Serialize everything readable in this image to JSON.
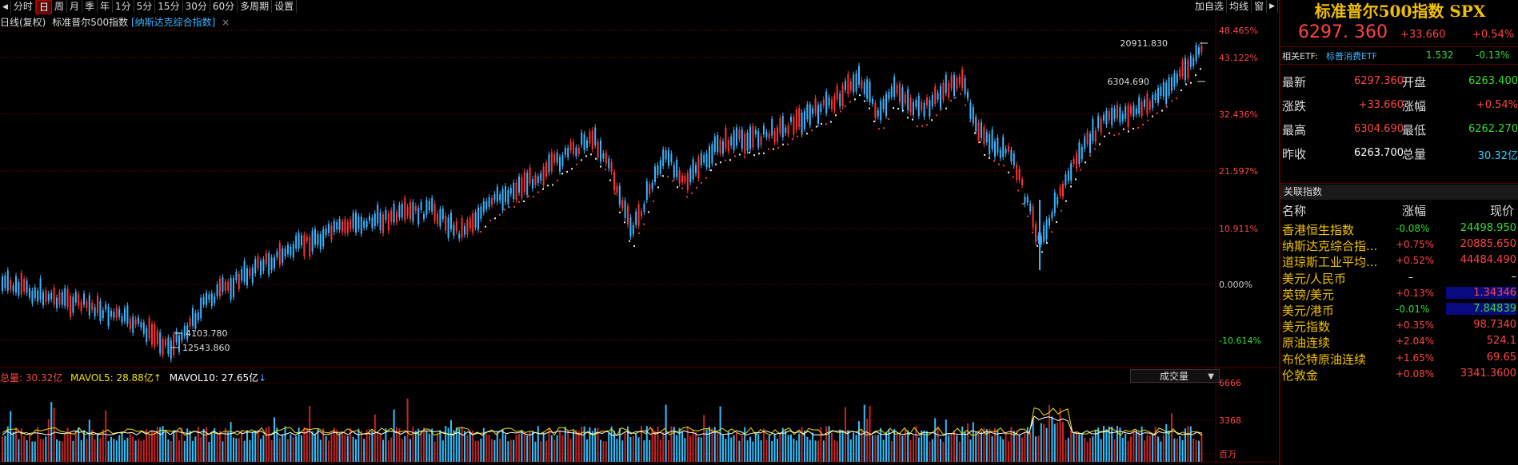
{
  "toolbar": {
    "arrow_left": "◀",
    "items": [
      "分时",
      "日",
      "周",
      "月",
      "季",
      "年",
      "1分",
      "5分",
      "15分",
      "30分",
      "60分",
      "多周期",
      "设置"
    ],
    "active_index": 1,
    "right_items": [
      "加自选",
      "均线",
      "窗"
    ],
    "arrow_right": "▶"
  },
  "chart_header": {
    "period": "日线(复权)",
    "name": "标准普尔500指数",
    "compare": "[纳斯达克综合指数]",
    "close": "×"
  },
  "price_axis": [
    "48.465%",
    "43.122%",
    "32.436%",
    "21.597%",
    "10.911%",
    "0.000%",
    "-10.614%"
  ],
  "annotations": {
    "high_main": "20911.830",
    "high_compare": "6304.690",
    "low_compare": "4103.780",
    "low_main": "12543.860"
  },
  "volume_header": {
    "total_label": "总量: 30.32亿",
    "mavol5": "MAVOL5: 28.88亿",
    "mavol10": "MAVOL10: 27.65亿",
    "select_value": "成交量",
    "axis": [
      "6666",
      "3368",
      "百万"
    ]
  },
  "colors": {
    "up": "#ff3333",
    "down": "#3cb4ff",
    "grid": "#5a0000",
    "accent": "#f0c000"
  },
  "panel": {
    "title": "标准普尔500指数 SPX",
    "price": "6297. 360",
    "change": "+33.660",
    "pct": "+0.54%",
    "etf_label": "相关ETF:",
    "etf_name": "标普消费ETF",
    "etf_price": "1.532",
    "etf_pct": "-0.13%",
    "quotes": [
      {
        "l1": "最新",
        "v1": "6297.360",
        "c1": "red",
        "l2": "开盘",
        "v2": "6263.400",
        "c2": "green"
      },
      {
        "l1": "涨跌",
        "v1": "+33.660",
        "c1": "red",
        "l2": "涨幅",
        "v2": "+0.54%",
        "c2": "red"
      },
      {
        "l1": "最高",
        "v1": "6304.690",
        "c1": "red",
        "l2": "最低",
        "v2": "6262.270",
        "c2": "green"
      },
      {
        "l1": "昨收",
        "v1": "6263.700",
        "c1": "white",
        "l2": "总量",
        "v2": "30.32亿",
        "c2": "cyan"
      }
    ],
    "section_title": "关联指数",
    "list_headers": {
      "name": "名称",
      "pct": "涨幅",
      "price": "现价"
    },
    "indices": [
      {
        "name": "香港恒生指数",
        "pct": "-0.08%",
        "pc": "green",
        "price": "24498.950",
        "prc": "green",
        "hl": false
      },
      {
        "name": "纳斯达克综合指...",
        "pct": "+0.75%",
        "pc": "red",
        "price": "20885.650",
        "prc": "red",
        "hl": false
      },
      {
        "name": "道琼斯工业平均...",
        "pct": "+0.52%",
        "pc": "red",
        "price": "44484.490",
        "prc": "red",
        "hl": false
      },
      {
        "name": "美元/人民币",
        "pct": "–",
        "pc": "white",
        "price": "–",
        "prc": "white",
        "hl": false
      },
      {
        "name": "英镑/美元",
        "pct": "+0.13%",
        "pc": "red",
        "price": "1.34346",
        "prc": "red",
        "hl": true
      },
      {
        "name": "美元/港币",
        "pct": "-0.01%",
        "pc": "green",
        "price": "7.84839",
        "prc": "green",
        "hl": true
      },
      {
        "name": "美元指数",
        "pct": "+0.35%",
        "pc": "red",
        "price": "98.7340",
        "prc": "red",
        "hl": false
      },
      {
        "name": "原油连续",
        "pct": "+2.04%",
        "pc": "red",
        "price": "524.1",
        "prc": "red",
        "hl": false
      },
      {
        "name": "布伦特原油连续",
        "pct": "+1.65%",
        "pc": "red",
        "price": "69.65",
        "prc": "red",
        "hl": false
      },
      {
        "name": "伦敦金",
        "pct": "+0.08%",
        "pc": "red",
        "price": "3341.3600",
        "prc": "red",
        "hl": false
      }
    ]
  }
}
